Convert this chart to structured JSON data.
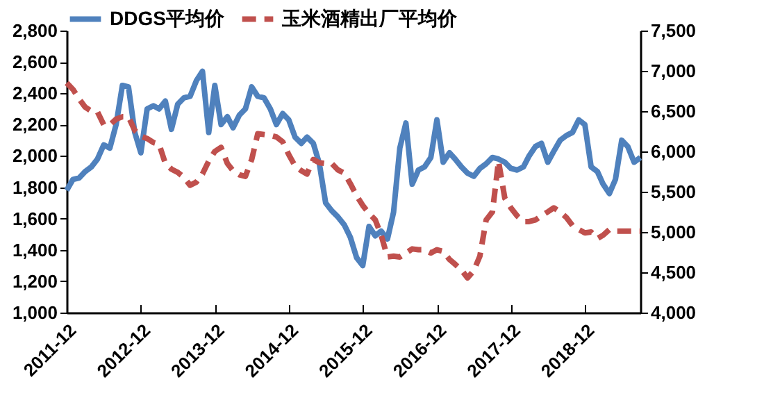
{
  "chart_data": {
    "type": "line",
    "x": [
      "2011-12",
      "2012-01",
      "2012-02",
      "2012-03",
      "2012-04",
      "2012-05",
      "2012-06",
      "2012-07",
      "2012-08",
      "2012-09",
      "2012-10",
      "2012-11",
      "2012-12",
      "2013-01",
      "2013-02",
      "2013-03",
      "2013-04",
      "2013-05",
      "2013-06",
      "2013-07",
      "2013-08",
      "2013-09",
      "2013-10",
      "2013-11",
      "2013-12",
      "2014-01",
      "2014-02",
      "2014-03",
      "2014-04",
      "2014-05",
      "2014-06",
      "2014-07",
      "2014-08",
      "2014-09",
      "2014-10",
      "2014-11",
      "2014-12",
      "2015-01",
      "2015-02",
      "2015-03",
      "2015-04",
      "2015-05",
      "2015-06",
      "2015-07",
      "2015-08",
      "2015-09",
      "2015-10",
      "2015-11",
      "2015-12",
      "2016-01",
      "2016-02",
      "2016-03",
      "2016-04",
      "2016-05",
      "2016-06",
      "2016-07",
      "2016-08",
      "2016-09",
      "2016-10",
      "2016-11",
      "2016-12",
      "2017-01",
      "2017-02",
      "2017-03",
      "2017-04",
      "2017-05",
      "2017-06",
      "2017-07",
      "2017-08",
      "2017-09",
      "2017-10",
      "2017-11",
      "2017-12",
      "2018-01",
      "2018-02",
      "2018-03",
      "2018-04",
      "2018-05",
      "2018-06",
      "2018-07",
      "2018-08",
      "2018-09",
      "2018-10",
      "2018-11",
      "2018-12",
      "2019-01",
      "2019-02",
      "2019-03",
      "2019-04",
      "2019-05",
      "2019-06",
      "2019-07",
      "2019-08",
      "2019-09"
    ],
    "series": [
      {
        "name": "DDGS平均价",
        "color": "#4f81bd",
        "line_style": "solid",
        "values": [
          1780,
          1850,
          1860,
          1900,
          1930,
          1980,
          2070,
          2050,
          2200,
          2450,
          2440,
          2150,
          2020,
          2300,
          2320,
          2300,
          2350,
          2170,
          2330,
          2370,
          2380,
          2480,
          2540,
          2150,
          2450,
          2200,
          2250,
          2180,
          2260,
          2300,
          2440,
          2380,
          2370,
          2300,
          2200,
          2270,
          2230,
          2120,
          2080,
          2120,
          2080,
          1950,
          1700,
          1650,
          1610,
          1560,
          1480,
          1350,
          1300,
          1550,
          1490,
          1520,
          1470,
          1640,
          2050,
          2210,
          1820,
          1910,
          1930,
          1990,
          2230,
          1960,
          2020,
          1980,
          1930,
          1890,
          1870,
          1920,
          1950,
          1990,
          1980,
          1960,
          1920,
          1910,
          1930,
          2000,
          2060,
          2080,
          1960,
          2030,
          2100,
          2130,
          2150,
          2230,
          2200,
          1930,
          1900,
          1820,
          1760,
          1850,
          2100,
          2060,
          1960,
          1990
        ]
      },
      {
        "name": "玉米酒精出厂平均价",
        "color": "#c0504d",
        "line_style": "dashed",
        "axis": "y2",
        "values": [
          6850,
          6770,
          6650,
          6550,
          6500,
          6490,
          6330,
          6330,
          6400,
          6430,
          6430,
          6260,
          6190,
          6160,
          6110,
          6090,
          5850,
          5780,
          5740,
          5680,
          5580,
          5620,
          5720,
          5880,
          6000,
          6050,
          5850,
          5760,
          5710,
          5690,
          5900,
          6220,
          6210,
          6200,
          6180,
          6120,
          5960,
          5820,
          5760,
          5720,
          5900,
          5860,
          5850,
          5850,
          5770,
          5730,
          5600,
          5450,
          5330,
          5230,
          5150,
          4960,
          4690,
          4700,
          4690,
          4740,
          4790,
          4780,
          4780,
          4740,
          4780,
          4760,
          4660,
          4600,
          4530,
          4430,
          4520,
          4700,
          5150,
          5250,
          5880,
          5420,
          5300,
          5200,
          5130,
          5130,
          5150,
          5200,
          5250,
          5300,
          5250,
          5180,
          5080,
          5030,
          4990,
          5000,
          4920,
          4960,
          5030,
          5010,
          5010,
          5010,
          5010,
          5010
        ]
      }
    ],
    "xlim": [
      "2011-12",
      "2019-09"
    ],
    "xticks": [
      "2011-12",
      "2012-12",
      "2013-12",
      "2014-12",
      "2015-12",
      "2016-12",
      "2017-12",
      "2018-12"
    ],
    "ylim": [
      1000,
      2800
    ],
    "yticks": [
      {
        "value": 1000,
        "label": "1,000"
      },
      {
        "value": 1200,
        "label": "1,200"
      },
      {
        "value": 1400,
        "label": "1,400"
      },
      {
        "value": 1600,
        "label": "1,600"
      },
      {
        "value": 1800,
        "label": "1,800"
      },
      {
        "value": 2000,
        "label": "2,000"
      },
      {
        "value": 2200,
        "label": "2,200"
      },
      {
        "value": 2400,
        "label": "2,400"
      },
      {
        "value": 2600,
        "label": "2,600"
      },
      {
        "value": 2800,
        "label": "2,800"
      }
    ],
    "y2lim": [
      4000,
      7500
    ],
    "y2ticks": [
      {
        "value": 4000,
        "label": "4,000"
      },
      {
        "value": 4500,
        "label": "4,500"
      },
      {
        "value": 5000,
        "label": "5,000"
      },
      {
        "value": 5500,
        "label": "5,500"
      },
      {
        "value": 6000,
        "label": "6,000"
      },
      {
        "value": 6500,
        "label": "6,500"
      },
      {
        "value": 7000,
        "label": "7,000"
      },
      {
        "value": 7500,
        "label": "7,500"
      }
    ],
    "legend": "top",
    "grid": false,
    "marker": "none"
  }
}
